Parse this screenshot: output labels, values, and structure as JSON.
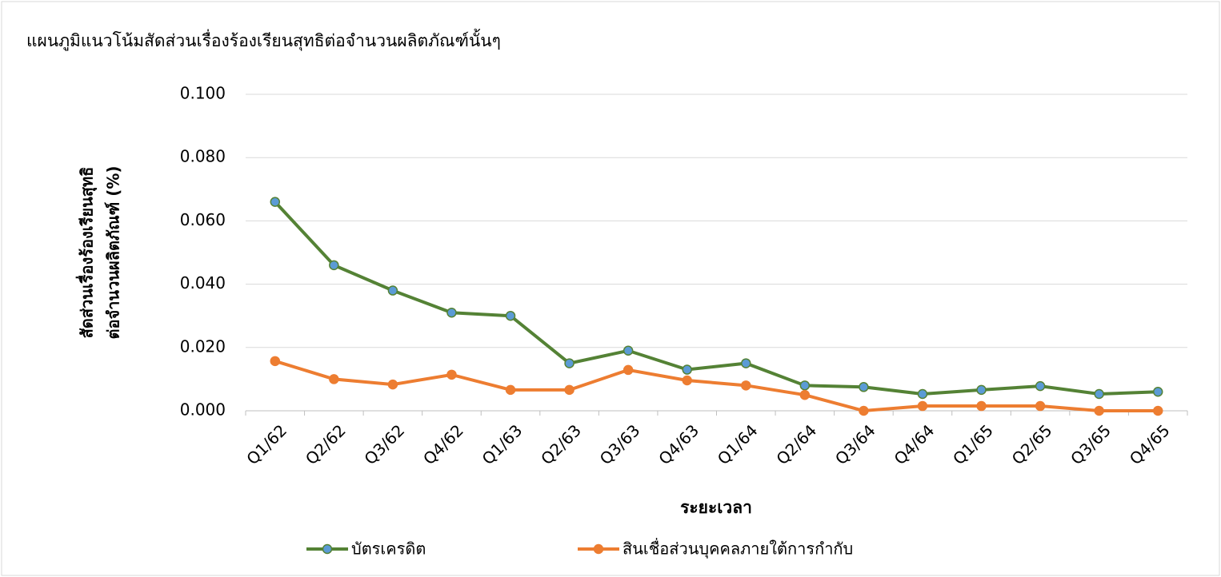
{
  "chart_data": {
    "type": "line",
    "title": "แผนภูมิแนวโน้มสัดส่วนเรื่องร้องเรียนสุทธิต่อจำนวนผลิตภัณฑ์นั้นๆ",
    "y_label": [
      "สัดส่วนเรื่องร้องเรียนสุทธิ",
      "ต่อจำนวนผลิตภัณฑ์ (%)"
    ],
    "x_label": "ระยะเวลา",
    "categories": [
      "Q1/62",
      "Q2/62",
      "Q3/62",
      "Q4/62",
      "Q1/63",
      "Q2/63",
      "Q3/63",
      "Q4/63",
      "Q1/64",
      "Q2/64",
      "Q3/64",
      "Q4/64",
      "Q1/65",
      "Q2/65",
      "Q3/65",
      "Q4/65"
    ],
    "series": [
      {
        "name": "บัตรเครดิต",
        "color": "#548235",
        "marker_color": "#5b9bd5",
        "values": [
          0.066,
          0.046,
          0.038,
          0.031,
          0.03,
          0.015,
          0.019,
          0.013,
          0.015,
          0.008,
          0.0075,
          0.0053,
          0.0066,
          0.0078,
          0.0053,
          0.006
        ]
      },
      {
        "name": "สินเชื่อส่วนบุคคลภายใต้การกำกับ",
        "color": "#ed7d31",
        "marker_color": "#ed7d31",
        "values": [
          0.0157,
          0.01,
          0.0083,
          0.0114,
          0.0066,
          0.0066,
          0.0129,
          0.0096,
          0.008,
          0.005,
          0,
          0.0015,
          0.0015,
          0.0015,
          0,
          0
        ]
      }
    ],
    "ylim": [
      0,
      0.1
    ],
    "yticks": [
      {
        "value": 0,
        "label": "0.000"
      },
      {
        "value": 0.02,
        "label": "0.020"
      },
      {
        "value": 0.04,
        "label": "0.040"
      },
      {
        "value": 0.06,
        "label": "0.060"
      },
      {
        "value": 0.08,
        "label": "0.080"
      },
      {
        "value": 0.1,
        "label": "0.100"
      }
    ],
    "grid": true,
    "legend": "bottom"
  }
}
